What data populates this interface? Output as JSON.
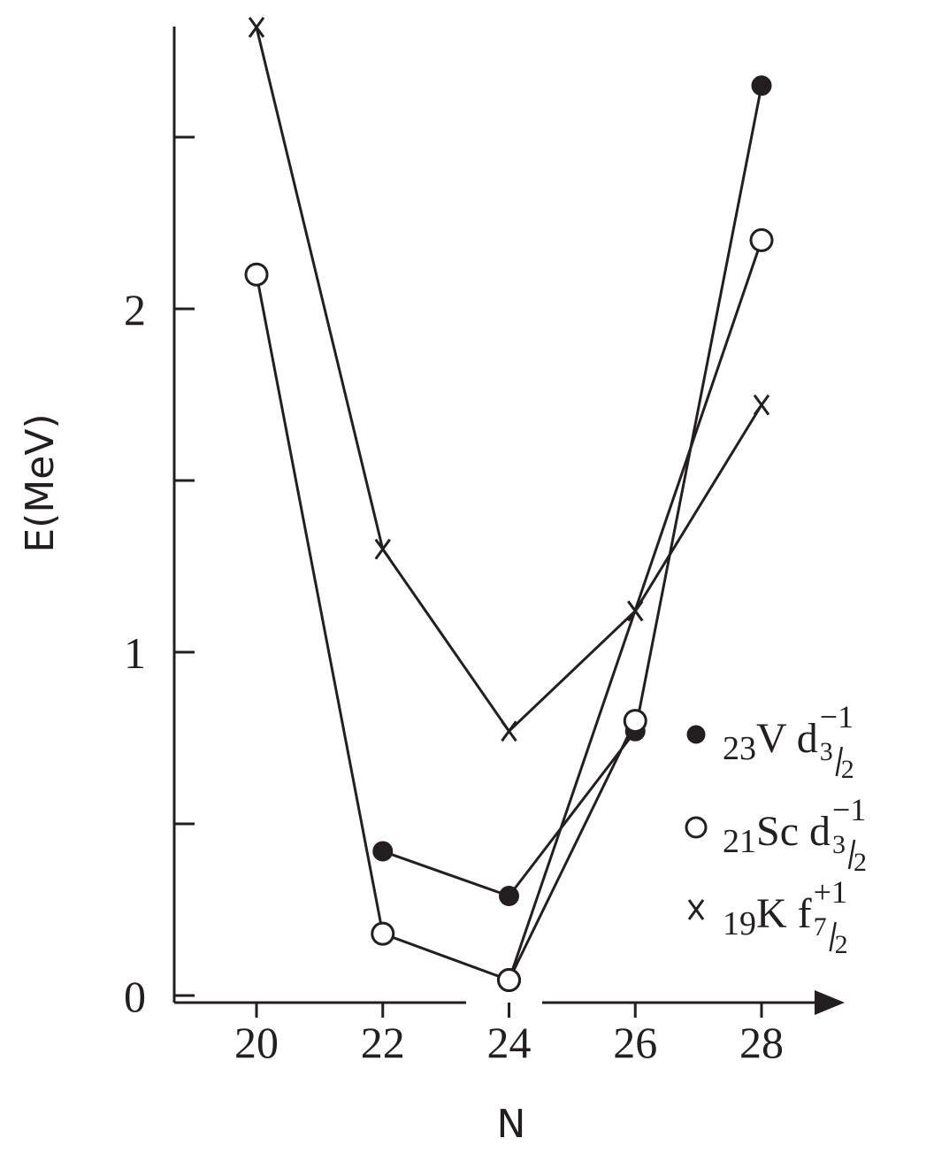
{
  "chart_data": {
    "type": "line",
    "xlabel": "N",
    "ylabel": "E(MeV)",
    "x_ticks": [
      "20",
      "22",
      "24",
      "26",
      "28"
    ],
    "y_tick_labels": [
      {
        "value": 0,
        "label": "0"
      },
      {
        "value": 1,
        "label": "1"
      },
      {
        "value": 2,
        "label": "2"
      }
    ],
    "y_minor_ticks": [
      0.5,
      1.5,
      2.5
    ],
    "xlim": [
      18.7,
      29.2
    ],
    "ylim": [
      0,
      2.85
    ],
    "grid": false,
    "legend_position": "right",
    "series": [
      {
        "key": "v",
        "marker": "filled-circle",
        "name_sub": "23",
        "name_main": "V d",
        "name_sup": "−1",
        "name_frac_num": "3",
        "name_frac_den": "2",
        "x": [
          22,
          24,
          26,
          28
        ],
        "y": [
          0.42,
          0.29,
          0.77,
          2.65
        ]
      },
      {
        "key": "sc",
        "marker": "open-circle",
        "name_sub": "21",
        "name_main": "Sc d",
        "name_sup": "−1",
        "name_frac_num": "3",
        "name_frac_den": "2",
        "x": [
          20,
          22,
          24,
          26
        ],
        "y": [
          2.1,
          0.18,
          0.045,
          0.8
        ]
      },
      {
        "key": "sc_b",
        "marker": "open-circle",
        "x": [
          24,
          28
        ],
        "y": [
          0.045,
          2.2
        ]
      },
      {
        "key": "k",
        "marker": "cross",
        "name_sub": "19",
        "name_main": "K f",
        "name_sup": "+1",
        "name_frac_num": "7",
        "name_frac_den": "2",
        "x": [
          20,
          22,
          24,
          26,
          28
        ],
        "y": [
          2.82,
          1.3,
          0.77,
          1.12,
          1.72
        ]
      }
    ]
  }
}
